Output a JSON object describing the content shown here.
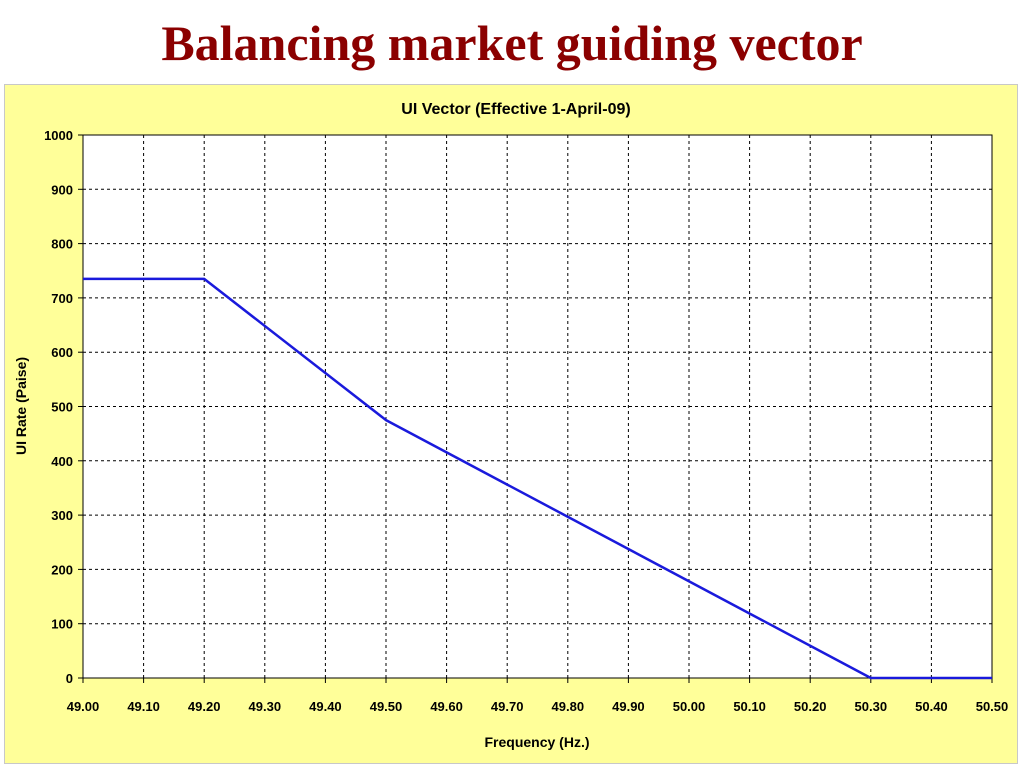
{
  "slide": {
    "title": "Balancing market guiding vector"
  },
  "colors": {
    "title": "#8B0000",
    "panel_background": "#FFFF99",
    "plot_background": "#FFFFFF",
    "series_line": "#1A1ADC",
    "grid": "#000000"
  },
  "chart_data": {
    "type": "line",
    "title": "UI Vector (Effective 1-April-09)",
    "xlabel": "Frequency (Hz.)",
    "ylabel": "UI Rate (Paise)",
    "xlim": [
      49.0,
      50.5
    ],
    "ylim": [
      0,
      1000
    ],
    "x_ticks": [
      "49.00",
      "49.10",
      "49.20",
      "49.30",
      "49.40",
      "49.50",
      "49.60",
      "49.70",
      "49.80",
      "49.90",
      "50.00",
      "50.10",
      "50.20",
      "50.30",
      "50.40",
      "50.50"
    ],
    "y_ticks": [
      "0",
      "100",
      "200",
      "300",
      "400",
      "500",
      "600",
      "700",
      "800",
      "900",
      "1000"
    ],
    "grid": true,
    "grid_style": "dashed",
    "legend": false,
    "series": [
      {
        "x": [
          49.0,
          49.2,
          49.5,
          50.3,
          50.5
        ],
        "y": [
          735,
          735,
          475,
          0,
          0
        ]
      }
    ]
  }
}
